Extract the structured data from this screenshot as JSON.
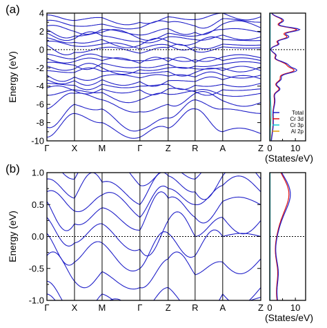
{
  "chart_data": [
    {
      "type": "line",
      "panel_label": "(a)",
      "ylabel": "Energy (eV)",
      "ylim": [
        -10,
        4
      ],
      "yticks": [
        "-10",
        "-8",
        "-6",
        "-4",
        "-2",
        "0",
        "2",
        "4"
      ],
      "kpath": [
        "Γ",
        "X",
        "M",
        "Γ",
        "Z",
        "R",
        "A",
        "Z"
      ],
      "fermi_level": 0,
      "band_color": "#1f1fc8",
      "dos": {
        "xlabel": "(States/eV)",
        "xticks": [
          "0",
          "10"
        ],
        "xlim": [
          0,
          14
        ],
        "legend_position": "bottom-right",
        "series": [
          {
            "name": "Total",
            "color": "#1f1fc8"
          },
          {
            "name": "Cr 3d",
            "color": "#e01010"
          },
          {
            "name": "Cr 3p",
            "color": "#10c8d0"
          },
          {
            "name": "Al 2p",
            "color": "#e0a000"
          }
        ]
      }
    },
    {
      "type": "line",
      "panel_label": "(b)",
      "ylabel": "Energy (eV)",
      "ylim": [
        -1.0,
        1.0
      ],
      "yticks": [
        "-1.0",
        "-0.5",
        "0.0",
        "0.5",
        "1.0"
      ],
      "kpath": [
        "Γ",
        "X",
        "M",
        "Γ",
        "Z",
        "R",
        "A",
        "Z"
      ],
      "fermi_level": 0,
      "band_color": "#1f1fc8",
      "dos": {
        "xlabel": "(States/eV)",
        "xticks": [
          "0",
          "10"
        ],
        "xlim": [
          0,
          14
        ]
      }
    }
  ]
}
